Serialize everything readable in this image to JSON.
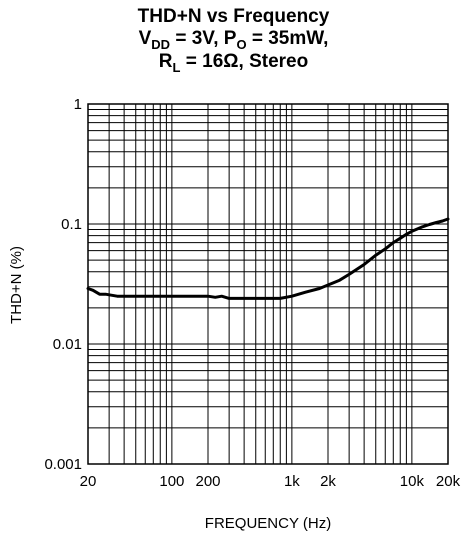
{
  "chart_data": {
    "type": "line",
    "title_line1": "THD+N vs Frequency",
    "title_line2": {
      "vdd_label": "V",
      "vdd_sub": "DD",
      "vdd_value": " = 3V, P",
      "po_sub": "O",
      "po_value": " = 35mW,"
    },
    "title_line3": {
      "rl_label": "R",
      "rl_sub": "L",
      "rl_value": " = 16Ω, Stereo"
    },
    "xlabel": "FREQUENCY (Hz)",
    "ylabel": "THD+N (%)",
    "x_scale": "log",
    "y_scale": "log",
    "xlim": [
      20,
      20000
    ],
    "ylim": [
      0.001,
      1
    ],
    "x_ticks": [
      {
        "value": 20,
        "label": "20"
      },
      {
        "value": 100,
        "label": "100"
      },
      {
        "value": 200,
        "label": "200"
      },
      {
        "value": 1000,
        "label": "1k"
      },
      {
        "value": 2000,
        "label": "2k"
      },
      {
        "value": 10000,
        "label": "10k"
      },
      {
        "value": 20000,
        "label": "20k"
      }
    ],
    "y_ticks": [
      {
        "value": 1,
        "label": "1"
      },
      {
        "value": 0.1,
        "label": "0.1"
      },
      {
        "value": 0.01,
        "label": "0.01"
      },
      {
        "value": 0.001,
        "label": "0.001"
      }
    ],
    "grid": true,
    "series": [
      {
        "color": "#000000",
        "x": [
          20,
          22,
          25,
          28,
          35,
          50,
          80,
          150,
          200,
          230,
          260,
          300,
          400,
          600,
          800,
          1000,
          1300,
          1700,
          2000,
          2500,
          3000,
          4000,
          5000,
          6000,
          7000,
          8000,
          9000,
          10000,
          12000,
          14000,
          16000,
          18000,
          20000
        ],
        "y": [
          0.029,
          0.028,
          0.026,
          0.026,
          0.025,
          0.025,
          0.025,
          0.025,
          0.025,
          0.0245,
          0.025,
          0.024,
          0.024,
          0.024,
          0.024,
          0.025,
          0.027,
          0.029,
          0.031,
          0.034,
          0.038,
          0.046,
          0.055,
          0.062,
          0.07,
          0.076,
          0.082,
          0.087,
          0.094,
          0.099,
          0.103,
          0.106,
          0.11
        ]
      }
    ]
  }
}
